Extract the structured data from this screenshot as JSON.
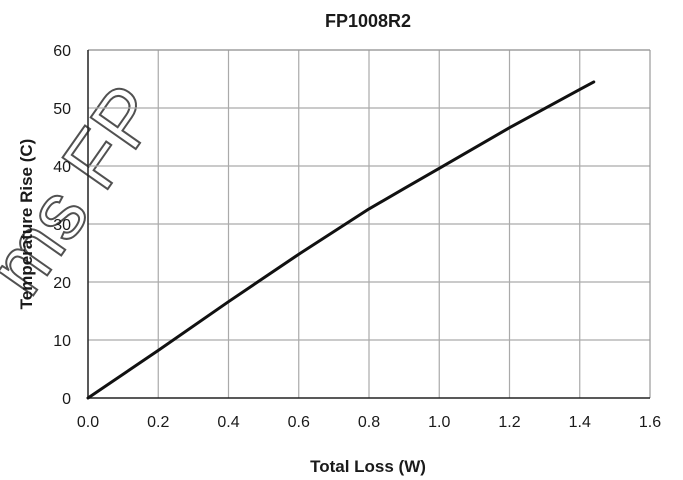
{
  "chart_data": {
    "type": "line",
    "title": "FP1008R2",
    "xlabel": "Total Loss (W)",
    "ylabel": "Temperature  Rise (C)",
    "xlim": [
      0,
      1.6
    ],
    "ylim": [
      0,
      60
    ],
    "x_ticks": [
      "0.0",
      "0.2",
      "0.4",
      "0.6",
      "0.8",
      "1.0",
      "1.2",
      "1.4",
      "1.6"
    ],
    "y_ticks": [
      "0",
      "10",
      "20",
      "30",
      "40",
      "50",
      "60"
    ],
    "grid": true,
    "series": [
      {
        "x": [
          0.0,
          0.2,
          0.4,
          0.6,
          0.8,
          0.9,
          1.0,
          1.2,
          1.4,
          1.44
        ],
        "y": [
          0,
          8.2,
          16.6,
          24.8,
          32.6,
          36.1,
          39.6,
          46.6,
          53.2,
          54.5
        ]
      }
    ],
    "colors": {
      "line": "#111111",
      "grid": "#aaaaaa",
      "frame": "#999999",
      "axis": "#222222"
    }
  },
  "watermark": {
    "text": "ms FP"
  }
}
